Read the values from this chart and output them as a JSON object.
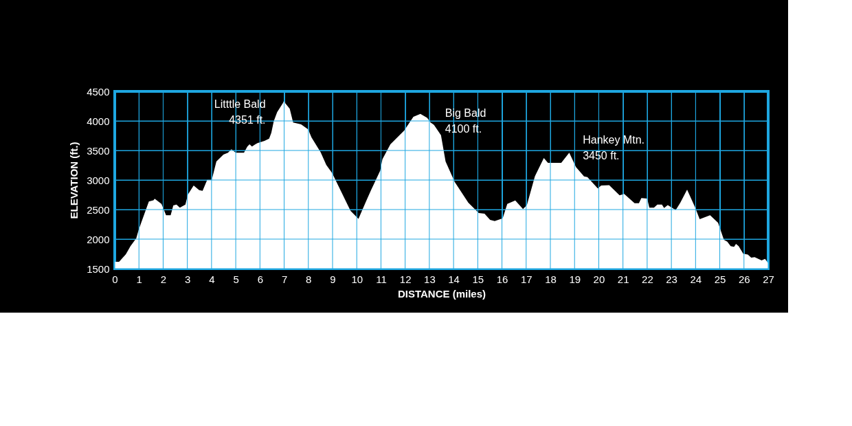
{
  "chart_data": {
    "type": "area",
    "xlabel": "DISTANCE (miles)",
    "ylabel": "ELEVATION (ft.)",
    "xlim": [
      0,
      27
    ],
    "xticks": [
      0,
      1,
      2,
      3,
      4,
      5,
      6,
      7,
      8,
      9,
      10,
      11,
      12,
      13,
      14,
      15,
      16,
      17,
      18,
      19,
      20,
      21,
      22,
      23,
      24,
      25,
      26,
      27
    ],
    "ylim": [
      1500,
      4500
    ],
    "yticks": [
      1500,
      2000,
      2500,
      3000,
      3500,
      4000,
      4500
    ],
    "grid": true,
    "annotations": [
      {
        "text": "Litttle Bald\n4351 ft.",
        "x": 7.0,
        "y": 4351
      },
      {
        "text": "Big Bald\n4100 ft.",
        "x": 12.6,
        "y": 4100
      },
      {
        "text": "Hankey Mtn.\n3450 ft.",
        "x": 18.8,
        "y": 3450
      }
    ],
    "series": [
      {
        "color": "#ffffff",
        "x": [
          0,
          0.18,
          0.46,
          0.65,
          0.89,
          0.99,
          1.22,
          1.41,
          1.6,
          1.65,
          1.93,
          2.12,
          2.31,
          2.42,
          2.55,
          2.69,
          2.92,
          3.02,
          3.26,
          3.49,
          3.63,
          3.82,
          4.01,
          4.2,
          4.49,
          4.68,
          4.82,
          5.0,
          5.34,
          5.48,
          5.57,
          5.67,
          5.81,
          5.9,
          6.19,
          6.38,
          6.47,
          6.57,
          6.71,
          6.95,
          7.0,
          7.04,
          7.23,
          7.37,
          7.7,
          7.99,
          8.13,
          8.51,
          8.74,
          8.98,
          9.74,
          10.07,
          10.4,
          10.59,
          10.97,
          11.06,
          11.39,
          11.96,
          12.34,
          12.63,
          12.91,
          13.05,
          13.19,
          13.48,
          13.67,
          14.05,
          14.61,
          15.04,
          15.28,
          15.51,
          15.7,
          16.03,
          16.22,
          16.55,
          16.87,
          17.03,
          17.36,
          17.73,
          17.9,
          18.45,
          18.78,
          19.06,
          19.39,
          19.53,
          19.96,
          20.1,
          20.43,
          20.86,
          21.05,
          21.48,
          21.66,
          21.76,
          22.0,
          22.09,
          22.28,
          22.42,
          22.61,
          22.7,
          22.85,
          23.18,
          23.37,
          23.65,
          23.98,
          24.17,
          24.6,
          24.93,
          25.17,
          25.31,
          25.45,
          25.59,
          25.67,
          25.78,
          25.97,
          26.16,
          26.3,
          26.44,
          26.73,
          26.87,
          26.96,
          27
        ],
        "values": [
          1616,
          1616,
          1744,
          1880,
          2015,
          2159,
          2422,
          2636,
          2656,
          2683,
          2597,
          2403,
          2403,
          2570,
          2585,
          2531,
          2585,
          2752,
          2907,
          2829,
          2818,
          3004,
          3004,
          3314,
          3431,
          3462,
          3519,
          3462,
          3462,
          3566,
          3605,
          3566,
          3605,
          3624,
          3663,
          3702,
          3799,
          3993,
          4148,
          4303,
          4351,
          4303,
          4206,
          3973,
          3942,
          3857,
          3721,
          3469,
          3256,
          3120,
          2480,
          2344,
          2655,
          2829,
          3159,
          3353,
          3605,
          3838,
          4070,
          4120,
          4051,
          3973,
          3934,
          3760,
          3314,
          2965,
          2616,
          2442,
          2430,
          2326,
          2306,
          2352,
          2597,
          2655,
          2508,
          2577,
          3062,
          3372,
          3290,
          3290,
          3462,
          3218,
          3062,
          3050,
          2857,
          2907,
          2913,
          2741,
          2764,
          2609,
          2609,
          2694,
          2686,
          2531,
          2531,
          2585,
          2585,
          2527,
          2577,
          2492,
          2616,
          2837,
          2539,
          2337,
          2403,
          2276,
          1988,
          1957,
          1880,
          1869,
          1919,
          1880,
          1752,
          1737,
          1686,
          1694,
          1640,
          1667,
          1613,
          1600
        ]
      }
    ]
  }
}
